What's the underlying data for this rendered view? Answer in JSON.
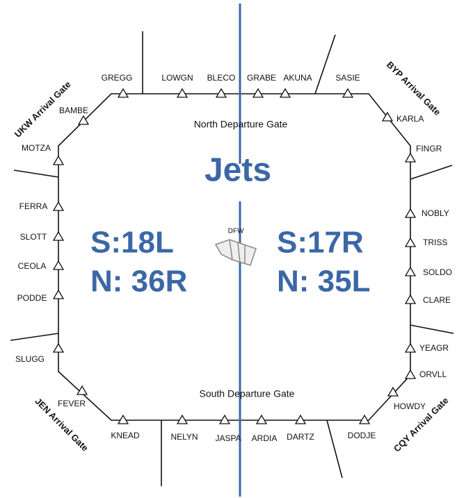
{
  "title": "Jets",
  "runways": [
    "S:18L",
    "N: 36R",
    "S:17R",
    "N: 35L"
  ],
  "departure_gates": [
    "North Departure Gate",
    "South Departure Gate"
  ],
  "arrival_gates": [
    "UKW Arrival Gate",
    "BYP Arrival Gate",
    "JEN Arrival Gate",
    "CQY Arrival Gate"
  ],
  "airport": "DFW",
  "fixes": [
    "GREGG",
    "LOWGN",
    "BLECO",
    "GRABE",
    "AKUNA",
    "SASIE",
    "KARLA",
    "FINGR",
    "NOBLY",
    "TRISS",
    "SOLDO",
    "CLARE",
    "YEAGR",
    "ORVLL",
    "HOWDY",
    "DODJE",
    "DARTZ",
    "ARDIA",
    "JASPA",
    "NELYN",
    "KNEAD",
    "FEVER",
    "SLUGG",
    "PODDE",
    "CEOLA",
    "SLOTT",
    "FERRA",
    "MOTZA",
    "BAMBE"
  ]
}
